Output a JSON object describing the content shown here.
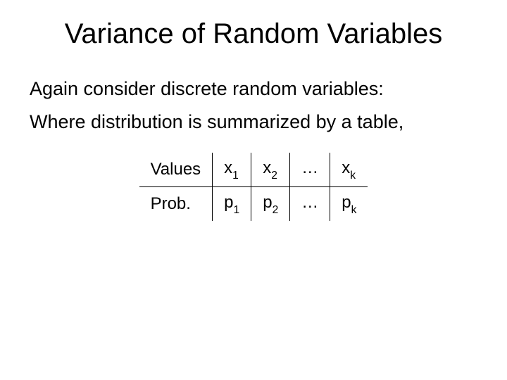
{
  "title": "Variance of Random Variables",
  "line1": "Again consider discrete random variables:",
  "line2": "Where distribution is summarized by a table,",
  "table": {
    "rows": [
      {
        "label": "Values",
        "cells": [
          {
            "base": "x",
            "sub": "1"
          },
          {
            "base": "x",
            "sub": "2"
          },
          {
            "base": "…",
            "sub": ""
          },
          {
            "base": "x",
            "sub": "k"
          }
        ]
      },
      {
        "label": "Prob.",
        "cells": [
          {
            "base": "p",
            "sub": "1"
          },
          {
            "base": "p",
            "sub": "2"
          },
          {
            "base": "…",
            "sub": ""
          },
          {
            "base": "p",
            "sub": "k"
          }
        ]
      }
    ]
  },
  "colors": {
    "background": "#ffffff",
    "text": "#000000",
    "border": "#000000"
  },
  "typography": {
    "title_fontsize": 40,
    "body_fontsize": 27,
    "table_fontsize": 24,
    "font_family": "Arial"
  }
}
